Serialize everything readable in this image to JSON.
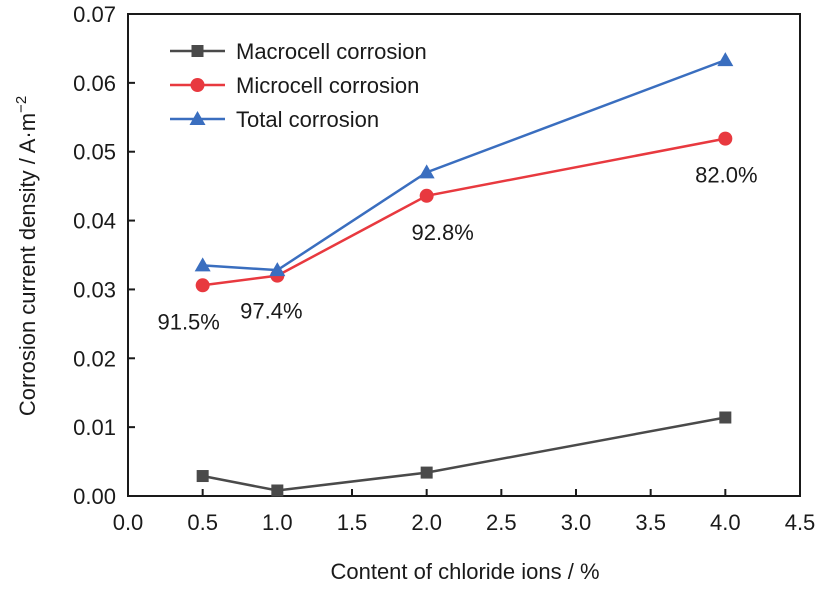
{
  "chart_data": {
    "type": "line",
    "xlabel": "Content of chloride ions / %",
    "ylabel": "Corrosion current density / A·m",
    "ylabel_superscript": "−2",
    "xlim": [
      0.0,
      4.5
    ],
    "ylim": [
      0.0,
      0.07
    ],
    "xticks": [
      "0.0",
      "0.5",
      "1.0",
      "1.5",
      "2.0",
      "2.5",
      "3.0",
      "3.5",
      "4.0",
      "4.5"
    ],
    "yticks": [
      "0.00",
      "0.01",
      "0.02",
      "0.03",
      "0.04",
      "0.05",
      "0.06",
      "0.07"
    ],
    "x": [
      0.5,
      1.0,
      2.0,
      4.0
    ],
    "grid": false,
    "legend_position": "top-left",
    "series": [
      {
        "name": "Macrocell corrosion",
        "marker": "square",
        "color": "#4a4a4a",
        "values": [
          0.0029,
          0.0008,
          0.0034,
          0.0114
        ]
      },
      {
        "name": "Microcell corrosion",
        "marker": "circle",
        "color": "#e8393f",
        "values": [
          0.0306,
          0.032,
          0.0436,
          0.0519
        ]
      },
      {
        "name": "Total corrosion",
        "marker": "triangle",
        "color": "#3a6ebf",
        "values": [
          0.0335,
          0.0328,
          0.047,
          0.0633
        ]
      }
    ],
    "annotations": [
      {
        "text": "91.5%",
        "x": 0.5,
        "y": 0.0306
      },
      {
        "text": "97.4%",
        "x": 1.0,
        "y": 0.032
      },
      {
        "text": "92.8%",
        "x": 2.0,
        "y": 0.0436
      },
      {
        "text": "82.0%",
        "x": 4.0,
        "y": 0.0519
      }
    ]
  }
}
